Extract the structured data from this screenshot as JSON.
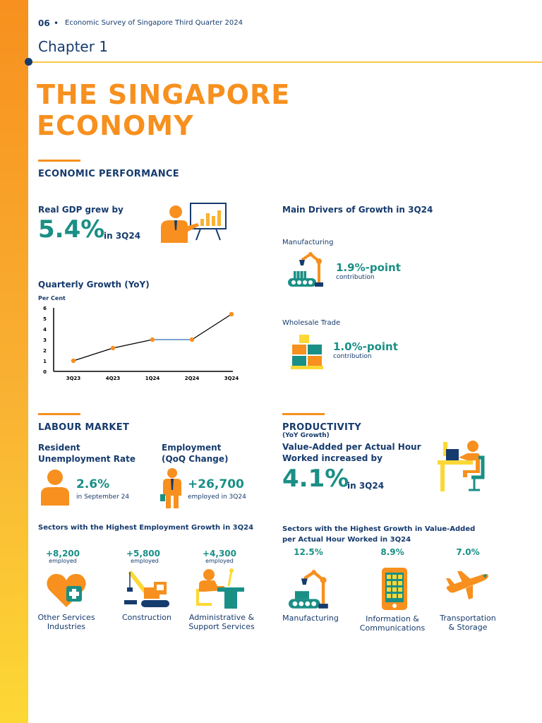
{
  "header": {
    "page_number": "06",
    "separator": "•",
    "doc_title": "Economic Survey of Singapore Third Quarter 2024",
    "chapter": "Chapter 1",
    "main_title_line1": "THE SINGAPORE",
    "main_title_line2": "ECONOMY"
  },
  "economic_performance": {
    "heading": "ECONOMIC PERFORMANCE",
    "gdp_label": "Real GDP grew by",
    "gdp_value": "5.4%",
    "gdp_period": "in 3Q24",
    "chart_title": "Quarterly Growth (YoY)",
    "drivers_title": "Main Drivers of Growth in 3Q24",
    "drivers": [
      {
        "name": "Manufacturing",
        "value": "1.9%-point",
        "sub": "contribution"
      },
      {
        "name": "Wholesale Trade",
        "value": "1.0%-point",
        "sub": "contribution"
      }
    ]
  },
  "chart_data": {
    "type": "line",
    "title": "Quarterly Growth (YoY)",
    "ylabel": "Per Cent",
    "xlabel": "",
    "categories": [
      "3Q23",
      "4Q23",
      "1Q24",
      "2Q24",
      "3Q24"
    ],
    "values": [
      1.0,
      2.2,
      3.0,
      3.0,
      5.4
    ],
    "ylim": [
      0,
      6
    ],
    "yticks": [
      "0",
      "1",
      "2",
      "3",
      "4",
      "5",
      "6"
    ],
    "line_color": "#000000",
    "highlight_color": "#2f6db5",
    "point_color": "#f7901e",
    "grid": false
  },
  "labour_market": {
    "heading": "LABOUR MARKET",
    "unemp_label_1": "Resident",
    "unemp_label_2": "Unemployment Rate",
    "unemp_value": "2.6%",
    "unemp_sub": "in September 24",
    "emp_label_1": "Employment",
    "emp_label_2": "(QoQ Change)",
    "emp_value": "+26,700",
    "emp_sub": "employed in 3Q24",
    "sectors_title": "Sectors with the Highest Employment Growth in 3Q24",
    "sectors": [
      {
        "value": "+8,200",
        "sub": "employed",
        "name_1": "Other Services",
        "name_2": "Industries"
      },
      {
        "value": "+5,800",
        "sub": "employed",
        "name_1": "Construction",
        "name_2": ""
      },
      {
        "value": "+4,300",
        "sub": "employed",
        "name_1": "Administrative &",
        "name_2": "Support Services"
      }
    ]
  },
  "productivity": {
    "heading": "PRODUCTIVITY",
    "sub_heading": "(YoY Growth)",
    "label_1": "Value-Added per Actual Hour",
    "label_2": "Worked increased by",
    "value": "4.1%",
    "period": "in 3Q24",
    "sectors_title_1": "Sectors with the Highest Growth in Value-Added",
    "sectors_title_2": "per Actual Hour Worked in 3Q24",
    "sectors": [
      {
        "value": "12.5%",
        "name_1": "Manufacturing",
        "name_2": ""
      },
      {
        "value": "8.9%",
        "name_1": "Information &",
        "name_2": "Communications"
      },
      {
        "value": "7.0%",
        "name_1": "Transportation",
        "name_2": "& Storage"
      }
    ]
  },
  "colors": {
    "orange": "#f7901e",
    "teal": "#1a8f86",
    "navy": "#163b6d",
    "yellow": "#fdd835"
  }
}
